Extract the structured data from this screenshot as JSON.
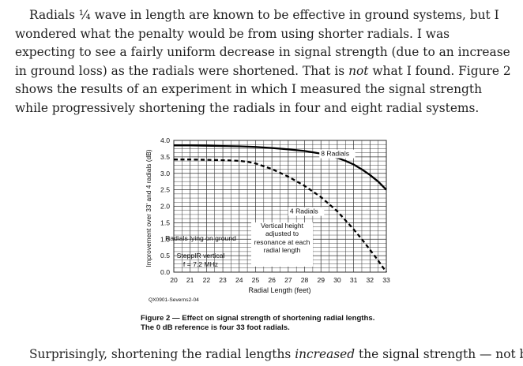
{
  "paragraph1": {
    "lines": [
      "Radials ¼ wave in length are known to be effective in ground systems, but I",
      "wondered what the penalty would be from using shorter radials. I was expecting to",
      "see a fairly uniform decrease in signal strength (due to an increase in ground loss)",
      "as the radials were shortened. That is ",
      "not",
      " what I found. Figure 2 shows the results",
      "of an experiment in which I measured the signal strength while progressively",
      "shortening the radials in four and eight radial systems."
    ]
  },
  "figure": {
    "caption_line1": "Figure 2 — Effect on signal strength of shortening radial lengths.",
    "caption_line2": "The 0 dB reference is four 33 foot radials.",
    "source_id": "QX0901-Severns2-04"
  },
  "chart_data": {
    "type": "line",
    "xlabel": "Radial Length (feet)",
    "ylabel": "Improvement over 33' and 4 radials (dB)",
    "xlim": [
      20,
      33
    ],
    "ylim": [
      0.0,
      4.0
    ],
    "x_ticks": [
      "20",
      "21",
      "22",
      "23",
      "24",
      "25",
      "26",
      "27",
      "28",
      "29",
      "30",
      "31",
      "32",
      "33"
    ],
    "y_ticks": [
      "0.0",
      "0.5",
      "1.0",
      "1.5",
      "2.0",
      "2.5",
      "3.0",
      "3.5",
      "4.0"
    ],
    "grid": true,
    "series": [
      {
        "name": "8 Radials",
        "style": "solid",
        "x": [
          20,
          21,
          22,
          23,
          24,
          25,
          26,
          27,
          28,
          29,
          30,
          30.5,
          31,
          31.5,
          32,
          32.5,
          33
        ],
        "y": [
          3.85,
          3.85,
          3.84,
          3.83,
          3.82,
          3.8,
          3.77,
          3.73,
          3.68,
          3.6,
          3.47,
          3.38,
          3.27,
          3.12,
          2.95,
          2.75,
          2.5
        ]
      },
      {
        "name": "4 Radials",
        "style": "dashed",
        "x": [
          20,
          21,
          22,
          23,
          24,
          24.5,
          25,
          26,
          27,
          28,
          29,
          30,
          31,
          31.5,
          32,
          32.5,
          33
        ],
        "y": [
          3.42,
          3.42,
          3.41,
          3.4,
          3.38,
          3.35,
          3.3,
          3.13,
          2.9,
          2.62,
          2.28,
          1.85,
          1.3,
          1.0,
          0.68,
          0.35,
          0.0
        ]
      }
    ],
    "annotations": [
      "Radials lying on ground",
      "SteppIR vertical",
      "f = 7.2 MHz",
      "Vertical height adjusted to resonance at each radial length"
    ]
  },
  "paragraph2": {
    "part1": "Surprisingly, shortening the radial lengths ",
    "part2": "increased",
    "part3": " the signal strength — not by"
  }
}
